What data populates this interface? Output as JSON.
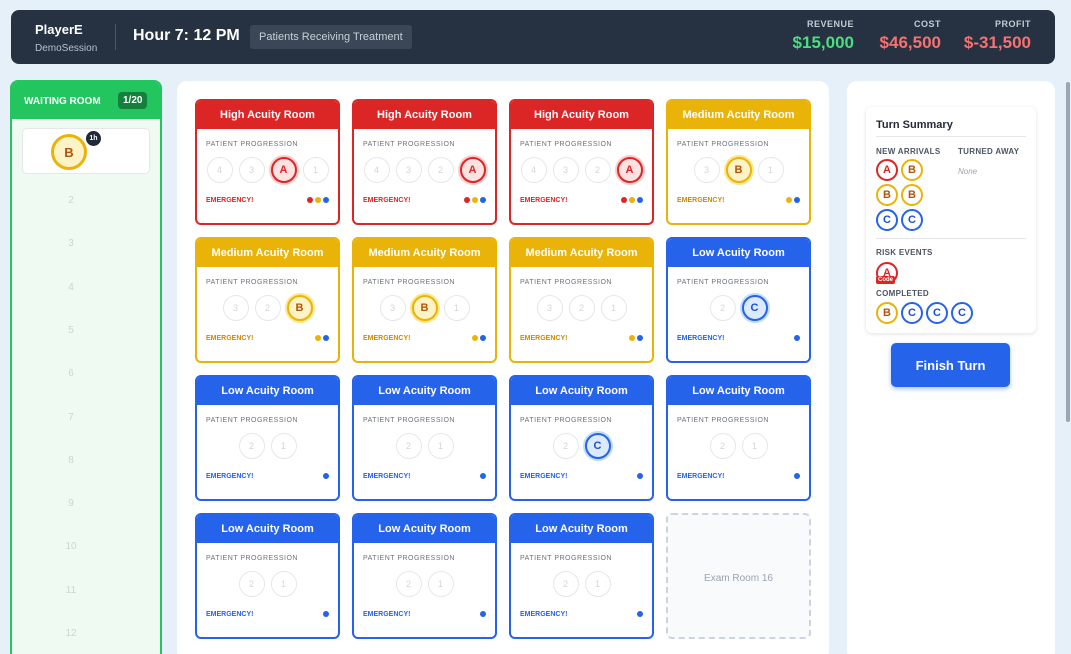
{
  "header": {
    "player_name": "PlayerE",
    "session_name": "DemoSession",
    "hour_label": "Hour 7: 12 PM",
    "status": "Patients Receiving Treatment",
    "revenue_label": "REVENUE",
    "revenue_value": "$15,000",
    "cost_label": "COST",
    "cost_value": "$46,500",
    "profit_label": "PROFIT",
    "profit_value": "$-31,500"
  },
  "waiting_room": {
    "title": "WAITING ROOM",
    "count": "1/20",
    "first_patient": "B",
    "first_patient_badge": "1h",
    "slot_numbers": [
      "2",
      "3",
      "4",
      "5",
      "6",
      "7",
      "8",
      "9",
      "10",
      "11",
      "12"
    ]
  },
  "rooms": [
    {
      "name": "High Acuity Room",
      "level": "high",
      "progression_label": "PATIENT PROGRESSION",
      "steps": [
        "4",
        "3",
        "A",
        "1"
      ],
      "active": 2,
      "emergency": "EMERGENCY!",
      "dots": [
        "red",
        "yellow",
        "blue"
      ]
    },
    {
      "name": "High Acuity Room",
      "level": "high",
      "progression_label": "PATIENT PROGRESSION",
      "steps": [
        "4",
        "3",
        "2",
        "A"
      ],
      "active": 3,
      "emergency": "EMERGENCY!",
      "dots": [
        "red",
        "yellow",
        "blue"
      ]
    },
    {
      "name": "High Acuity Room",
      "level": "high",
      "progression_label": "PATIENT PROGRESSION",
      "steps": [
        "4",
        "3",
        "2",
        "A"
      ],
      "active": 3,
      "emergency": "EMERGENCY!",
      "dots": [
        "red",
        "yellow",
        "blue"
      ]
    },
    {
      "name": "Medium Acuity Room",
      "level": "med",
      "progression_label": "PATIENT PROGRESSION",
      "steps": [
        "3",
        "B",
        "1"
      ],
      "active": 1,
      "emergency": "EMERGENCY!",
      "dots": [
        "yellow",
        "blue"
      ]
    },
    {
      "name": "Medium Acuity Room",
      "level": "med",
      "progression_label": "PATIENT PROGRESSION",
      "steps": [
        "3",
        "2",
        "B"
      ],
      "active": 2,
      "emergency": "EMERGENCY!",
      "dots": [
        "yellow",
        "blue"
      ]
    },
    {
      "name": "Medium Acuity Room",
      "level": "med",
      "progression_label": "PATIENT PROGRESSION",
      "steps": [
        "3",
        "B",
        "1"
      ],
      "active": 1,
      "emergency": "EMERGENCY!",
      "dots": [
        "yellow",
        "blue"
      ]
    },
    {
      "name": "Medium Acuity Room",
      "level": "med",
      "progression_label": "PATIENT PROGRESSION",
      "steps": [
        "3",
        "2",
        "1"
      ],
      "active": -1,
      "emergency": "EMERGENCY!",
      "dots": [
        "yellow",
        "blue"
      ]
    },
    {
      "name": "Low Acuity Room",
      "level": "low",
      "progression_label": "PATIENT PROGRESSION",
      "steps": [
        "2",
        "C"
      ],
      "active": 1,
      "emergency": "EMERGENCY!",
      "dots": [
        "blue"
      ]
    },
    {
      "name": "Low Acuity Room",
      "level": "low",
      "progression_label": "PATIENT PROGRESSION",
      "steps": [
        "2",
        "1"
      ],
      "active": -1,
      "emergency": "EMERGENCY!",
      "dots": [
        "blue"
      ]
    },
    {
      "name": "Low Acuity Room",
      "level": "low",
      "progression_label": "PATIENT PROGRESSION",
      "steps": [
        "2",
        "1"
      ],
      "active": -1,
      "emergency": "EMERGENCY!",
      "dots": [
        "blue"
      ]
    },
    {
      "name": "Low Acuity Room",
      "level": "low",
      "progression_label": "PATIENT PROGRESSION",
      "steps": [
        "2",
        "C"
      ],
      "active": 1,
      "emergency": "EMERGENCY!",
      "dots": [
        "blue"
      ]
    },
    {
      "name": "Low Acuity Room",
      "level": "low",
      "progression_label": "PATIENT PROGRESSION",
      "steps": [
        "2",
        "1"
      ],
      "active": -1,
      "emergency": "EMERGENCY!",
      "dots": [
        "blue"
      ]
    },
    {
      "name": "Low Acuity Room",
      "level": "low",
      "progression_label": "PATIENT PROGRESSION",
      "steps": [
        "2",
        "1"
      ],
      "active": -1,
      "emergency": "EMERGENCY!",
      "dots": [
        "blue"
      ]
    },
    {
      "name": "Low Acuity Room",
      "level": "low",
      "progression_label": "PATIENT PROGRESSION",
      "steps": [
        "2",
        "1"
      ],
      "active": -1,
      "emergency": "EMERGENCY!",
      "dots": [
        "blue"
      ]
    },
    {
      "name": "Low Acuity Room",
      "level": "low",
      "progression_label": "PATIENT PROGRESSION",
      "steps": [
        "2",
        "1"
      ],
      "active": -1,
      "emergency": "EMERGENCY!",
      "dots": [
        "blue"
      ]
    },
    {
      "name": "Exam Room 16",
      "level": "empty"
    }
  ],
  "summary": {
    "title": "Turn Summary",
    "new_arrivals_label": "NEW ARRIVALS",
    "turned_away_label": "TURNED AWAY",
    "turned_away_value": "None",
    "new_arrivals": [
      [
        "A",
        "B"
      ],
      [
        "B",
        "B"
      ],
      [
        "C",
        "C"
      ]
    ],
    "risk_events_label": "RISK EVENTS",
    "risk_events": [
      "A"
    ],
    "risk_code_label": "Code",
    "completed_label": "COMPLETED",
    "completed": [
      "B",
      "C",
      "C",
      "C"
    ],
    "finish_button": "Finish Turn"
  },
  "colors": {
    "header_bg": "#263241",
    "waiting_green": "#22c55e",
    "high_red": "#dc2626",
    "medium_yellow": "#eab308",
    "low_blue": "#2563eb",
    "revenue_green": "#4ade80",
    "cost_red": "#f87171"
  }
}
